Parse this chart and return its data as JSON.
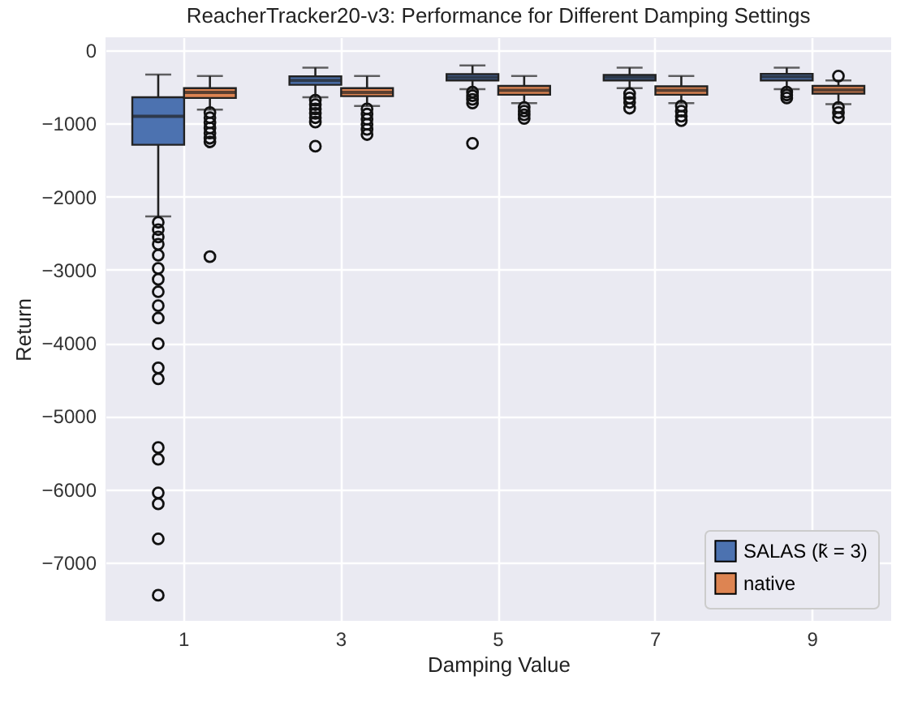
{
  "chart_data": {
    "type": "box",
    "title": "ReacherTracker20-v3: Performance for Different Damping Settings",
    "xlabel": "Damping Value",
    "ylabel": "Return",
    "categories": [
      "1",
      "3",
      "5",
      "7",
      "9"
    ],
    "ylim": [
      -7800,
      180
    ],
    "yticks": [
      -7000,
      -6000,
      -5000,
      -4000,
      -3000,
      -2000,
      -1000,
      0
    ],
    "grid": true,
    "legend": "bottom right",
    "series": [
      {
        "name": "SALAS (k̃ = 3)",
        "color": "#4c72b0",
        "boxes": [
          {
            "low": -2270,
            "q1": -1290,
            "median": -900,
            "q3": -640,
            "high": -330,
            "outliers": [
              -2350,
              -2450,
              -2550,
              -2650,
              -2800,
              -2980,
              -3130,
              -3300,
              -3490,
              -3660,
              -4010,
              -4340,
              -4490,
              -5430,
              -5590,
              -6050,
              -6200,
              -6680,
              -7450
            ]
          },
          {
            "low": -640,
            "q1": -470,
            "median": -410,
            "q3": -355,
            "high": -235,
            "outliers": [
              -680,
              -740,
              -800,
              -860,
              -920,
              -980,
              -1310
            ]
          },
          {
            "low": -530,
            "q1": -410,
            "median": -370,
            "q3": -325,
            "high": -205,
            "outliers": [
              -570,
              -620,
              -670,
              -720,
              -1270
            ]
          },
          {
            "low": -515,
            "q1": -410,
            "median": -370,
            "q3": -335,
            "high": -235,
            "outliers": [
              -590,
              -650,
              -710,
              -790
            ]
          },
          {
            "low": -530,
            "q1": -410,
            "median": -360,
            "q3": -320,
            "high": -235,
            "outliers": [
              -570,
              -610,
              -650
            ]
          }
        ]
      },
      {
        "name": "native",
        "color": "#dd8452",
        "boxes": [
          {
            "low": -810,
            "q1": -650,
            "median": -575,
            "q3": -515,
            "high": -350,
            "outliers": [
              -850,
              -920,
              -990,
              -1060,
              -1130,
              -1200,
              -1250,
              -2820
            ]
          },
          {
            "low": -760,
            "q1": -625,
            "median": -575,
            "q3": -515,
            "high": -350,
            "outliers": [
              -800,
              -870,
              -940,
              -1010,
              -1080,
              -1150
            ]
          },
          {
            "low": -720,
            "q1": -605,
            "median": -545,
            "q3": -485,
            "high": -350,
            "outliers": [
              -780,
              -830,
              -880,
              -930
            ]
          },
          {
            "low": -720,
            "q1": -605,
            "median": -545,
            "q3": -490,
            "high": -350,
            "outliers": [
              -760,
              -830,
              -900,
              -960
            ]
          },
          {
            "low": -735,
            "q1": -590,
            "median": -540,
            "q3": -485,
            "high": -410,
            "outliers": [
              -350,
              -780,
              -850,
              -920
            ]
          }
        ]
      }
    ]
  }
}
